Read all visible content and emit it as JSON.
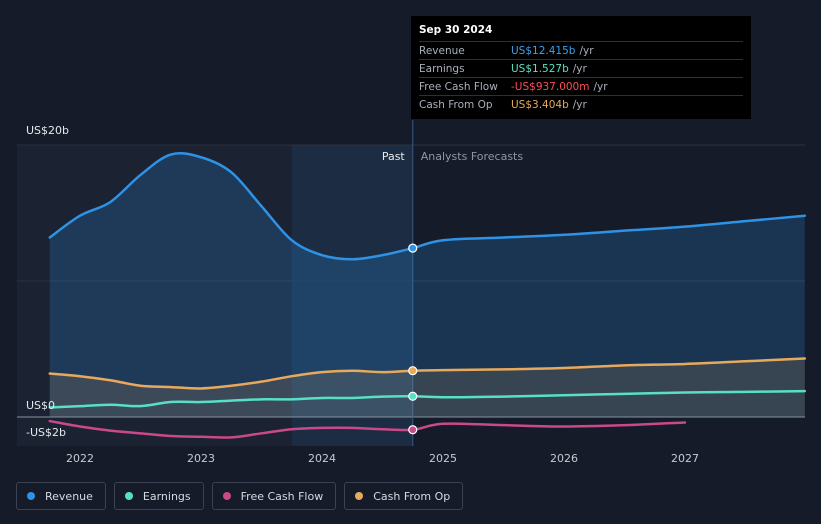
{
  "chart_data": {
    "type": "line",
    "x_ticks": [
      "2022",
      "2023",
      "2024",
      "2025",
      "2026",
      "2027"
    ],
    "y_labels": [
      "US$20b",
      "US$0",
      "-US$2b"
    ],
    "past_label": "Past",
    "forecast_label": "Analysts Forecasts",
    "series": [
      {
        "name": "Revenue",
        "color": "#2e93e6",
        "points": [
          [
            2021.75,
            13.2
          ],
          [
            2022.0,
            14.8
          ],
          [
            2022.25,
            15.8
          ],
          [
            2022.5,
            17.8
          ],
          [
            2022.75,
            19.3
          ],
          [
            2023.0,
            19.1
          ],
          [
            2023.25,
            18.0
          ],
          [
            2023.5,
            15.5
          ],
          [
            2023.75,
            13.0
          ],
          [
            2024.0,
            11.9
          ],
          [
            2024.25,
            11.6
          ],
          [
            2024.5,
            11.9
          ],
          [
            2024.75,
            12.415
          ],
          [
            2025.0,
            13.0
          ],
          [
            2025.5,
            13.2
          ],
          [
            2026.0,
            13.4
          ],
          [
            2026.5,
            13.7
          ],
          [
            2027.0,
            14.0
          ],
          [
            2027.5,
            14.4
          ],
          [
            2027.99,
            14.8
          ]
        ]
      },
      {
        "name": "Earnings",
        "color": "#58e0c4",
        "points": [
          [
            2021.75,
            0.7
          ],
          [
            2022.0,
            0.8
          ],
          [
            2022.25,
            0.9
          ],
          [
            2022.5,
            0.8
          ],
          [
            2022.75,
            1.1
          ],
          [
            2023.0,
            1.1
          ],
          [
            2023.25,
            1.2
          ],
          [
            2023.5,
            1.3
          ],
          [
            2023.75,
            1.3
          ],
          [
            2024.0,
            1.4
          ],
          [
            2024.25,
            1.4
          ],
          [
            2024.5,
            1.5
          ],
          [
            2024.75,
            1.527
          ],
          [
            2025.0,
            1.45
          ],
          [
            2025.5,
            1.5
          ],
          [
            2026.0,
            1.6
          ],
          [
            2026.5,
            1.7
          ],
          [
            2027.0,
            1.8
          ],
          [
            2027.5,
            1.85
          ],
          [
            2027.99,
            1.9
          ]
        ]
      },
      {
        "name": "Free Cash Flow",
        "color": "#c9498a",
        "points": [
          [
            2021.75,
            -0.3
          ],
          [
            2022.0,
            -0.7
          ],
          [
            2022.25,
            -1.0
          ],
          [
            2022.5,
            -1.2
          ],
          [
            2022.75,
            -1.4
          ],
          [
            2023.0,
            -1.45
          ],
          [
            2023.25,
            -1.5
          ],
          [
            2023.5,
            -1.2
          ],
          [
            2023.75,
            -0.9
          ],
          [
            2024.0,
            -0.8
          ],
          [
            2024.25,
            -0.8
          ],
          [
            2024.5,
            -0.9
          ],
          [
            2024.75,
            -0.937
          ],
          [
            2025.0,
            -0.5
          ],
          [
            2025.5,
            -0.6
          ],
          [
            2026.0,
            -0.7
          ],
          [
            2026.5,
            -0.6
          ],
          [
            2027.0,
            -0.4
          ]
        ]
      },
      {
        "name": "Cash From Op",
        "color": "#e8a95c",
        "points": [
          [
            2021.75,
            3.2
          ],
          [
            2022.0,
            3.0
          ],
          [
            2022.25,
            2.7
          ],
          [
            2022.5,
            2.3
          ],
          [
            2022.75,
            2.2
          ],
          [
            2023.0,
            2.1
          ],
          [
            2023.25,
            2.3
          ],
          [
            2023.5,
            2.6
          ],
          [
            2023.75,
            3.0
          ],
          [
            2024.0,
            3.3
          ],
          [
            2024.25,
            3.4
          ],
          [
            2024.5,
            3.3
          ],
          [
            2024.75,
            3.404
          ],
          [
            2025.0,
            3.45
          ],
          [
            2025.5,
            3.5
          ],
          [
            2026.0,
            3.6
          ],
          [
            2026.5,
            3.8
          ],
          [
            2027.0,
            3.9
          ],
          [
            2027.5,
            4.1
          ],
          [
            2027.99,
            4.3
          ]
        ]
      }
    ],
    "past_end": 2024.75,
    "highlight_start": 2023.75,
    "xlim": [
      2021.63,
      2027.99
    ],
    "ylim": [
      -2,
      20
    ]
  },
  "tooltip": {
    "date": "Sep 30 2024",
    "unit": "/yr",
    "rows": [
      {
        "label": "Revenue",
        "value": "US$12.415b",
        "color": "#3aa0f0"
      },
      {
        "label": "Earnings",
        "value": "US$1.527b",
        "color": "#58e0c4"
      },
      {
        "label": "Free Cash Flow",
        "value": "-US$937.000m",
        "color": "#ff4d57"
      },
      {
        "label": "Cash From Op",
        "value": "US$3.404b",
        "color": "#e8a95c"
      }
    ]
  },
  "legend": [
    {
      "label": "Revenue",
      "color": "#2e93e6"
    },
    {
      "label": "Earnings",
      "color": "#58e0c4"
    },
    {
      "label": "Free Cash Flow",
      "color": "#c9498a"
    },
    {
      "label": "Cash From Op",
      "color": "#e8a95c"
    }
  ]
}
